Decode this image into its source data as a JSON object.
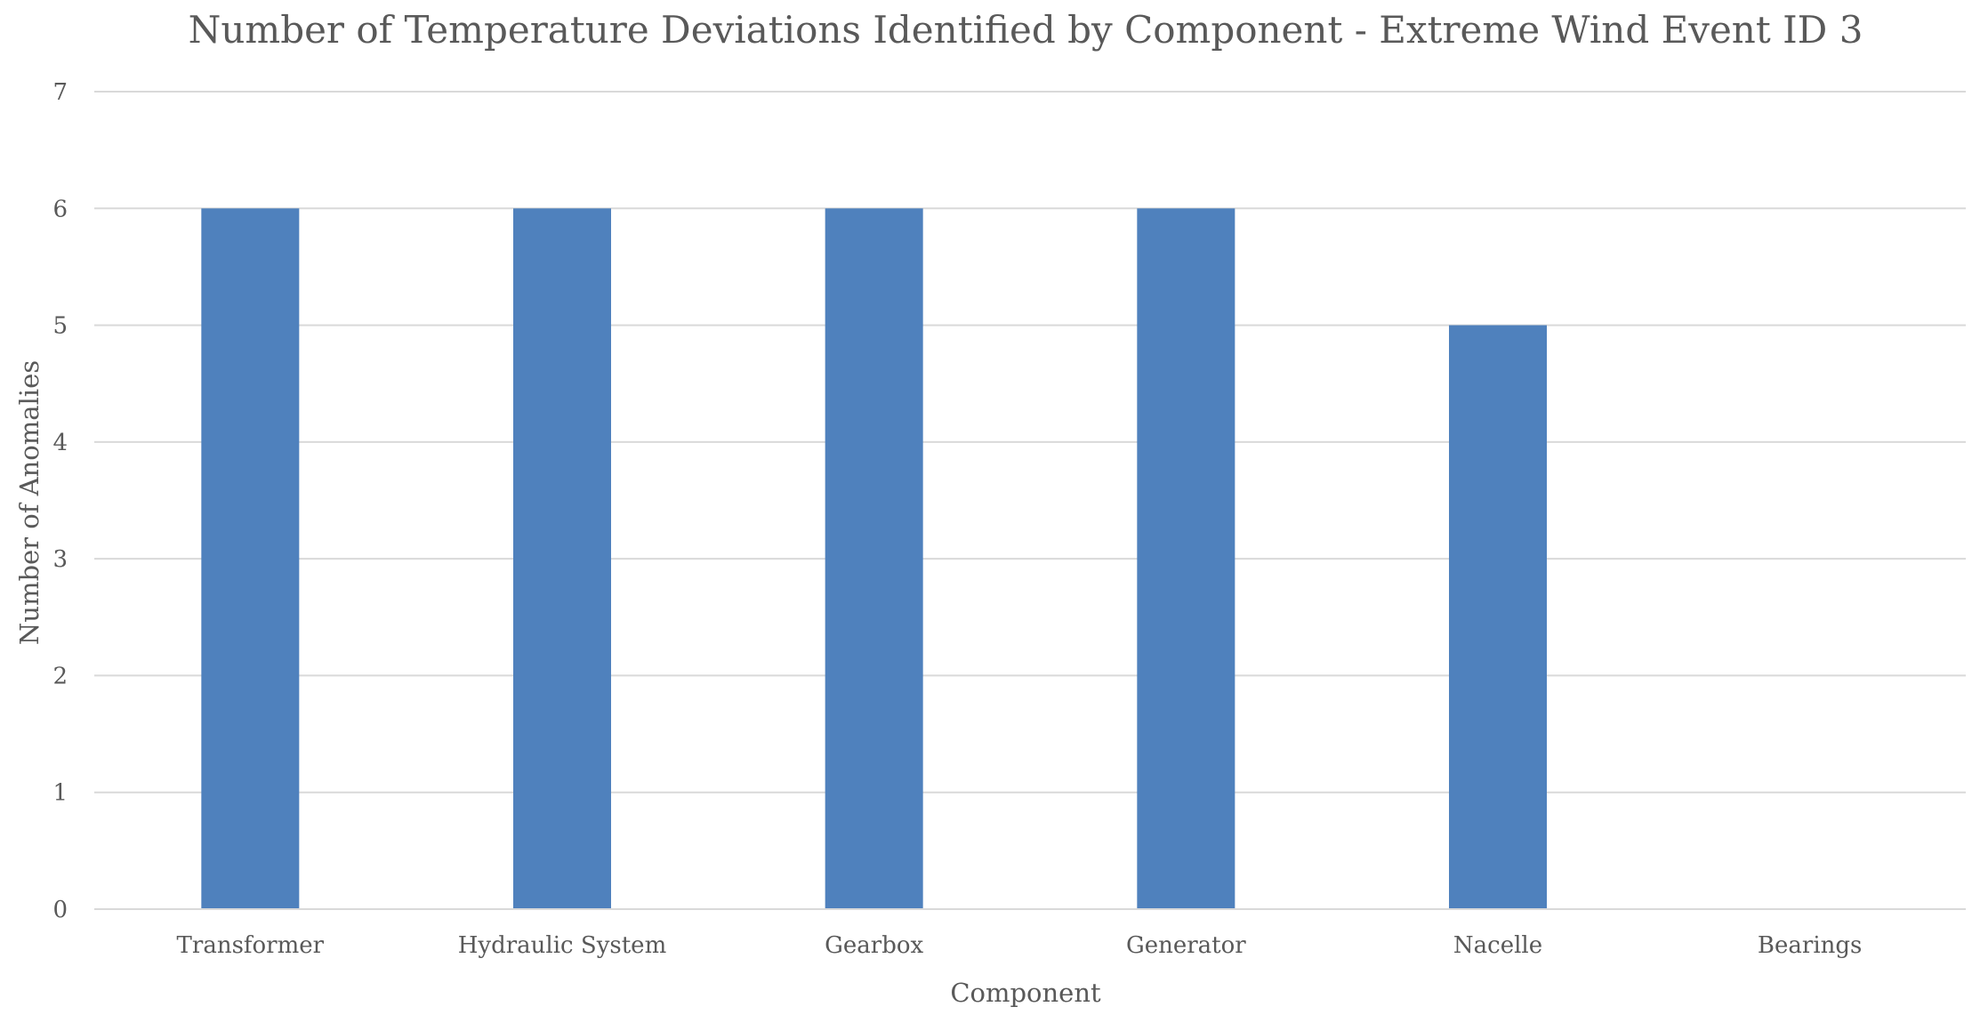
{
  "chart_data": {
    "type": "bar",
    "title": "Number of Temperature Deviations Identified by Component - Extreme Wind Event ID 3",
    "xlabel": "Component",
    "ylabel": "Number of Anomalies",
    "categories": [
      "Transformer",
      "Hydraulic System",
      "Gearbox",
      "Generator",
      "Nacelle",
      "Bearings"
    ],
    "values": [
      6,
      6,
      6,
      6,
      5,
      0
    ],
    "ylim": [
      0,
      7
    ],
    "yticks": [
      0,
      1,
      2,
      3,
      4,
      5,
      6,
      7
    ],
    "grid": true,
    "legend": "none",
    "bar_color": "#4f81bd"
  }
}
